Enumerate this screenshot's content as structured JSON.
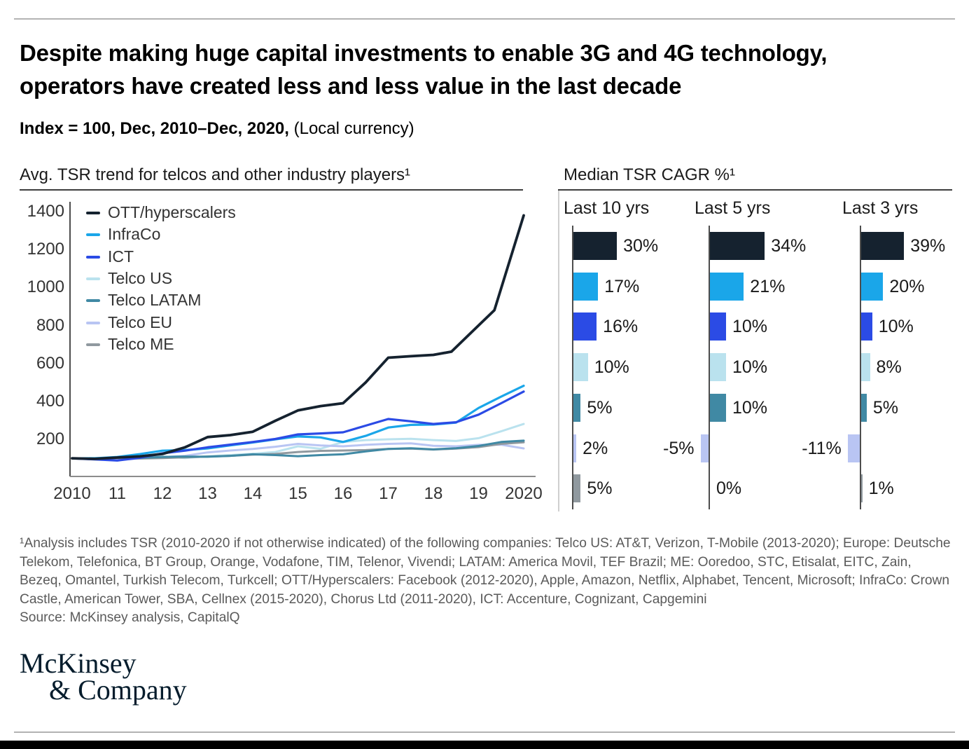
{
  "header": {
    "title_line1": "Despite making huge capital investments to enable 3G and 4G technology,",
    "title_line2": "operators have created less and less value in the last decade",
    "subtitle_bold": "Index = 100, Dec, 2010–Dec, 2020,",
    "subtitle_note": "(Local currency)"
  },
  "colors": {
    "ott": "#15222F",
    "infraco": "#1AA6E9",
    "ict": "#2B4BE5",
    "telco_us": "#BAE2EE",
    "telco_latam": "#4089A4",
    "telco_eu": "#B9C5F3",
    "telco_me": "#90999F",
    "logo_navy": "#051C2C"
  },
  "chart_data": [
    {
      "type": "line",
      "title": "Avg. TSR trend for telcos and other industry players¹",
      "xlabel": "",
      "ylabel": "",
      "ylim": [
        0,
        1400
      ],
      "grid": false,
      "legend_position": "top-left",
      "y_ticks": [
        1400,
        1200,
        1000,
        800,
        600,
        400,
        200
      ],
      "x_ticks": [
        {
          "label": "2010",
          "year": 2010
        },
        {
          "label": "11",
          "year": 2011
        },
        {
          "label": "12",
          "year": 2012
        },
        {
          "label": "13",
          "year": 2013
        },
        {
          "label": "14",
          "year": 2014
        },
        {
          "label": "15",
          "year": 2015
        },
        {
          "label": "16",
          "year": 2016
        },
        {
          "label": "17",
          "year": 2017
        },
        {
          "label": "18",
          "year": 2018
        },
        {
          "label": "19",
          "year": 2019
        },
        {
          "label": "2020",
          "year": 2020
        }
      ],
      "series": [
        {
          "name": "Telco US",
          "color_key": "telco_us",
          "width": 3,
          "points": [
            [
              2010,
              100
            ],
            [
              2011,
              103
            ],
            [
              2011.5,
              107
            ],
            [
              2012,
              110
            ],
            [
              2012.5,
              101
            ],
            [
              2013,
              111
            ],
            [
              2013.5,
              117
            ],
            [
              2014,
              124
            ],
            [
              2014.5,
              133
            ],
            [
              2015,
              163
            ],
            [
              2015.5,
              150
            ],
            [
              2016,
              186
            ],
            [
              2016.5,
              196
            ],
            [
              2017,
              200
            ],
            [
              2017.5,
              203
            ],
            [
              2018,
              196
            ],
            [
              2018.5,
              191
            ],
            [
              2019,
              206
            ],
            [
              2019.5,
              242
            ],
            [
              2020,
              281
            ]
          ]
        },
        {
          "name": "Telco EU",
          "color_key": "telco_eu",
          "width": 3,
          "points": [
            [
              2010,
              100
            ],
            [
              2010.5,
              96
            ],
            [
              2011,
              91
            ],
            [
              2011.5,
              99
            ],
            [
              2012,
              106
            ],
            [
              2012.5,
              113
            ],
            [
              2013,
              131
            ],
            [
              2013.5,
              141
            ],
            [
              2014,
              149
            ],
            [
              2014.5,
              161
            ],
            [
              2015,
              176
            ],
            [
              2015.5,
              168
            ],
            [
              2016,
              163
            ],
            [
              2016.5,
              171
            ],
            [
              2017,
              176
            ],
            [
              2017.5,
              179
            ],
            [
              2018,
              166
            ],
            [
              2018.5,
              163
            ],
            [
              2019,
              171
            ],
            [
              2019.5,
              172
            ],
            [
              2020,
              152
            ]
          ]
        },
        {
          "name": "Telco ME",
          "color_key": "telco_me",
          "width": 3,
          "points": [
            [
              2010,
              100
            ],
            [
              2010.5,
              99
            ],
            [
              2011,
              101
            ],
            [
              2011.5,
              99
            ],
            [
              2012,
              101
            ],
            [
              2012.5,
              105
            ],
            [
              2013,
              109
            ],
            [
              2013.5,
              113
            ],
            [
              2014,
              119
            ],
            [
              2014.5,
              123
            ],
            [
              2015,
              133
            ],
            [
              2015.5,
              139
            ],
            [
              2016,
              141
            ],
            [
              2016.5,
              143
            ],
            [
              2017,
              149
            ],
            [
              2017.5,
              151
            ],
            [
              2018,
              146
            ],
            [
              2018.5,
              151
            ],
            [
              2019,
              159
            ],
            [
              2019.5,
              176
            ],
            [
              2020,
              184
            ]
          ]
        },
        {
          "name": "Telco LATAM",
          "color_key": "telco_latam",
          "width": 3,
          "points": [
            [
              2010,
              100
            ],
            [
              2010.5,
              98
            ],
            [
              2011,
              104
            ],
            [
              2011.5,
              102
            ],
            [
              2012,
              107
            ],
            [
              2012.5,
              109
            ],
            [
              2013,
              108
            ],
            [
              2013.5,
              113
            ],
            [
              2014,
              121
            ],
            [
              2014.5,
              117
            ],
            [
              2015,
              111
            ],
            [
              2015.5,
              117
            ],
            [
              2016,
              121
            ],
            [
              2016.5,
              136
            ],
            [
              2017,
              149
            ],
            [
              2017.5,
              153
            ],
            [
              2018,
              147
            ],
            [
              2018.5,
              153
            ],
            [
              2019,
              165
            ],
            [
              2019.5,
              186
            ],
            [
              2020,
              193
            ]
          ]
        },
        {
          "name": "InfraCo",
          "color_key": "infraco",
          "width": 3.2,
          "points": [
            [
              2010,
              100
            ],
            [
              2010.5,
              100
            ],
            [
              2011,
              107
            ],
            [
              2011.5,
              122
            ],
            [
              2012,
              140
            ],
            [
              2012.5,
              143
            ],
            [
              2013,
              152
            ],
            [
              2013.5,
              168
            ],
            [
              2014,
              183
            ],
            [
              2014.5,
              200
            ],
            [
              2015,
              215
            ],
            [
              2015.5,
              210
            ],
            [
              2016,
              186
            ],
            [
              2016.5,
              218
            ],
            [
              2017,
              262
            ],
            [
              2017.5,
              276
            ],
            [
              2018,
              278
            ],
            [
              2018.5,
              288
            ],
            [
              2019,
              365
            ],
            [
              2019.5,
              425
            ],
            [
              2020,
              482
            ]
          ]
        },
        {
          "name": "ICT",
          "color_key": "ict",
          "width": 3.2,
          "points": [
            [
              2010,
              100
            ],
            [
              2010.5,
              94
            ],
            [
              2011,
              88
            ],
            [
              2011.5,
              103
            ],
            [
              2012,
              126
            ],
            [
              2012.5,
              140
            ],
            [
              2013,
              158
            ],
            [
              2013.5,
              172
            ],
            [
              2014,
              186
            ],
            [
              2014.5,
              202
            ],
            [
              2015,
              226
            ],
            [
              2015.5,
              231
            ],
            [
              2016,
              237
            ],
            [
              2016.5,
              272
            ],
            [
              2017,
              307
            ],
            [
              2017.5,
              295
            ],
            [
              2018,
              281
            ],
            [
              2018.5,
              290
            ],
            [
              2019,
              330
            ],
            [
              2019.5,
              390
            ],
            [
              2020,
              452
            ]
          ]
        },
        {
          "name": "OTT/hyperscalers",
          "color_key": "ott",
          "width": 3.8,
          "points": [
            [
              2010,
              100
            ],
            [
              2010.5,
              97
            ],
            [
              2011,
              104
            ],
            [
              2011.5,
              110
            ],
            [
              2012,
              123
            ],
            [
              2012.5,
              158
            ],
            [
              2013,
              212
            ],
            [
              2013.5,
              222
            ],
            [
              2014,
              240
            ],
            [
              2014.5,
              298
            ],
            [
              2015,
              352
            ],
            [
              2015.5,
              375
            ],
            [
              2016,
              390
            ],
            [
              2016.5,
              500
            ],
            [
              2017,
              630
            ],
            [
              2017.5,
              638
            ],
            [
              2018,
              645
            ],
            [
              2018.4,
              662
            ],
            [
              2019,
              800
            ],
            [
              2019.35,
              880
            ],
            [
              2020,
              1380
            ]
          ]
        }
      ],
      "legend_order": [
        "OTT/hyperscalers",
        "InfraCo",
        "ICT",
        "Telco US",
        "Telco LATAM",
        "Telco EU",
        "Telco ME"
      ]
    },
    {
      "type": "bar",
      "title": "Median TSR CAGR %¹",
      "orientation": "horizontal",
      "groups": [
        "Last 10 yrs",
        "Last 5 yrs",
        "Last 3 yrs"
      ],
      "series": [
        {
          "name": "OTT/hyperscalers",
          "color_key": "ott",
          "values": [
            30,
            34,
            39
          ],
          "labels": [
            "30%",
            "34%",
            "39%"
          ]
        },
        {
          "name": "InfraCo",
          "color_key": "infraco",
          "values": [
            17,
            21,
            20
          ],
          "labels": [
            "17%",
            "21%",
            "20%"
          ]
        },
        {
          "name": "ICT",
          "color_key": "ict",
          "values": [
            16,
            10,
            10
          ],
          "labels": [
            "16%",
            "10%",
            "10%"
          ]
        },
        {
          "name": "Telco US",
          "color_key": "telco_us",
          "values": [
            10,
            10,
            8
          ],
          "labels": [
            "10%",
            "10%",
            "8%"
          ]
        },
        {
          "name": "Telco LATAM",
          "color_key": "telco_latam",
          "values": [
            5,
            10,
            5
          ],
          "labels": [
            "5%",
            "10%",
            "5%"
          ]
        },
        {
          "name": "Telco EU",
          "color_key": "telco_eu",
          "values": [
            2,
            -5,
            -11
          ],
          "labels": [
            "2%",
            "-5%",
            "-11%"
          ]
        },
        {
          "name": "Telco ME",
          "color_key": "telco_me",
          "values": [
            5,
            0,
            1
          ],
          "labels": [
            "5%",
            "0%",
            "1%"
          ]
        }
      ]
    }
  ],
  "footnote": {
    "text": "¹Analysis includes TSR (2010-2020 if not otherwise indicated) of the following companies: Telco US: AT&T, Verizon, T-Mobile (2013-2020); Europe: Deutsche Telekom, Telefonica, BT Group, Orange, Vodafone, TIM, Telenor, Vivendi; LATAM: America Movil, TEF Brazil; ME: Ooredoo, STC, Etisalat, EITC, Zain, Bezeq, Omantel, Turkish Telecom, Turkcell; OTT/Hyperscalers: Facebook (2012-2020), Apple, Amazon, Netflix, Alphabet, Tencent, Microsoft; InfraCo: Crown Castle, American Tower, SBA, Cellnex (2015-2020), Chorus Ltd (2011-2020), ICT: Accenture, Cognizant, Capgemini",
    "source": "Source: McKinsey analysis, CapitalQ"
  },
  "logo": {
    "line1": "McKinsey",
    "line2": "& Company"
  }
}
